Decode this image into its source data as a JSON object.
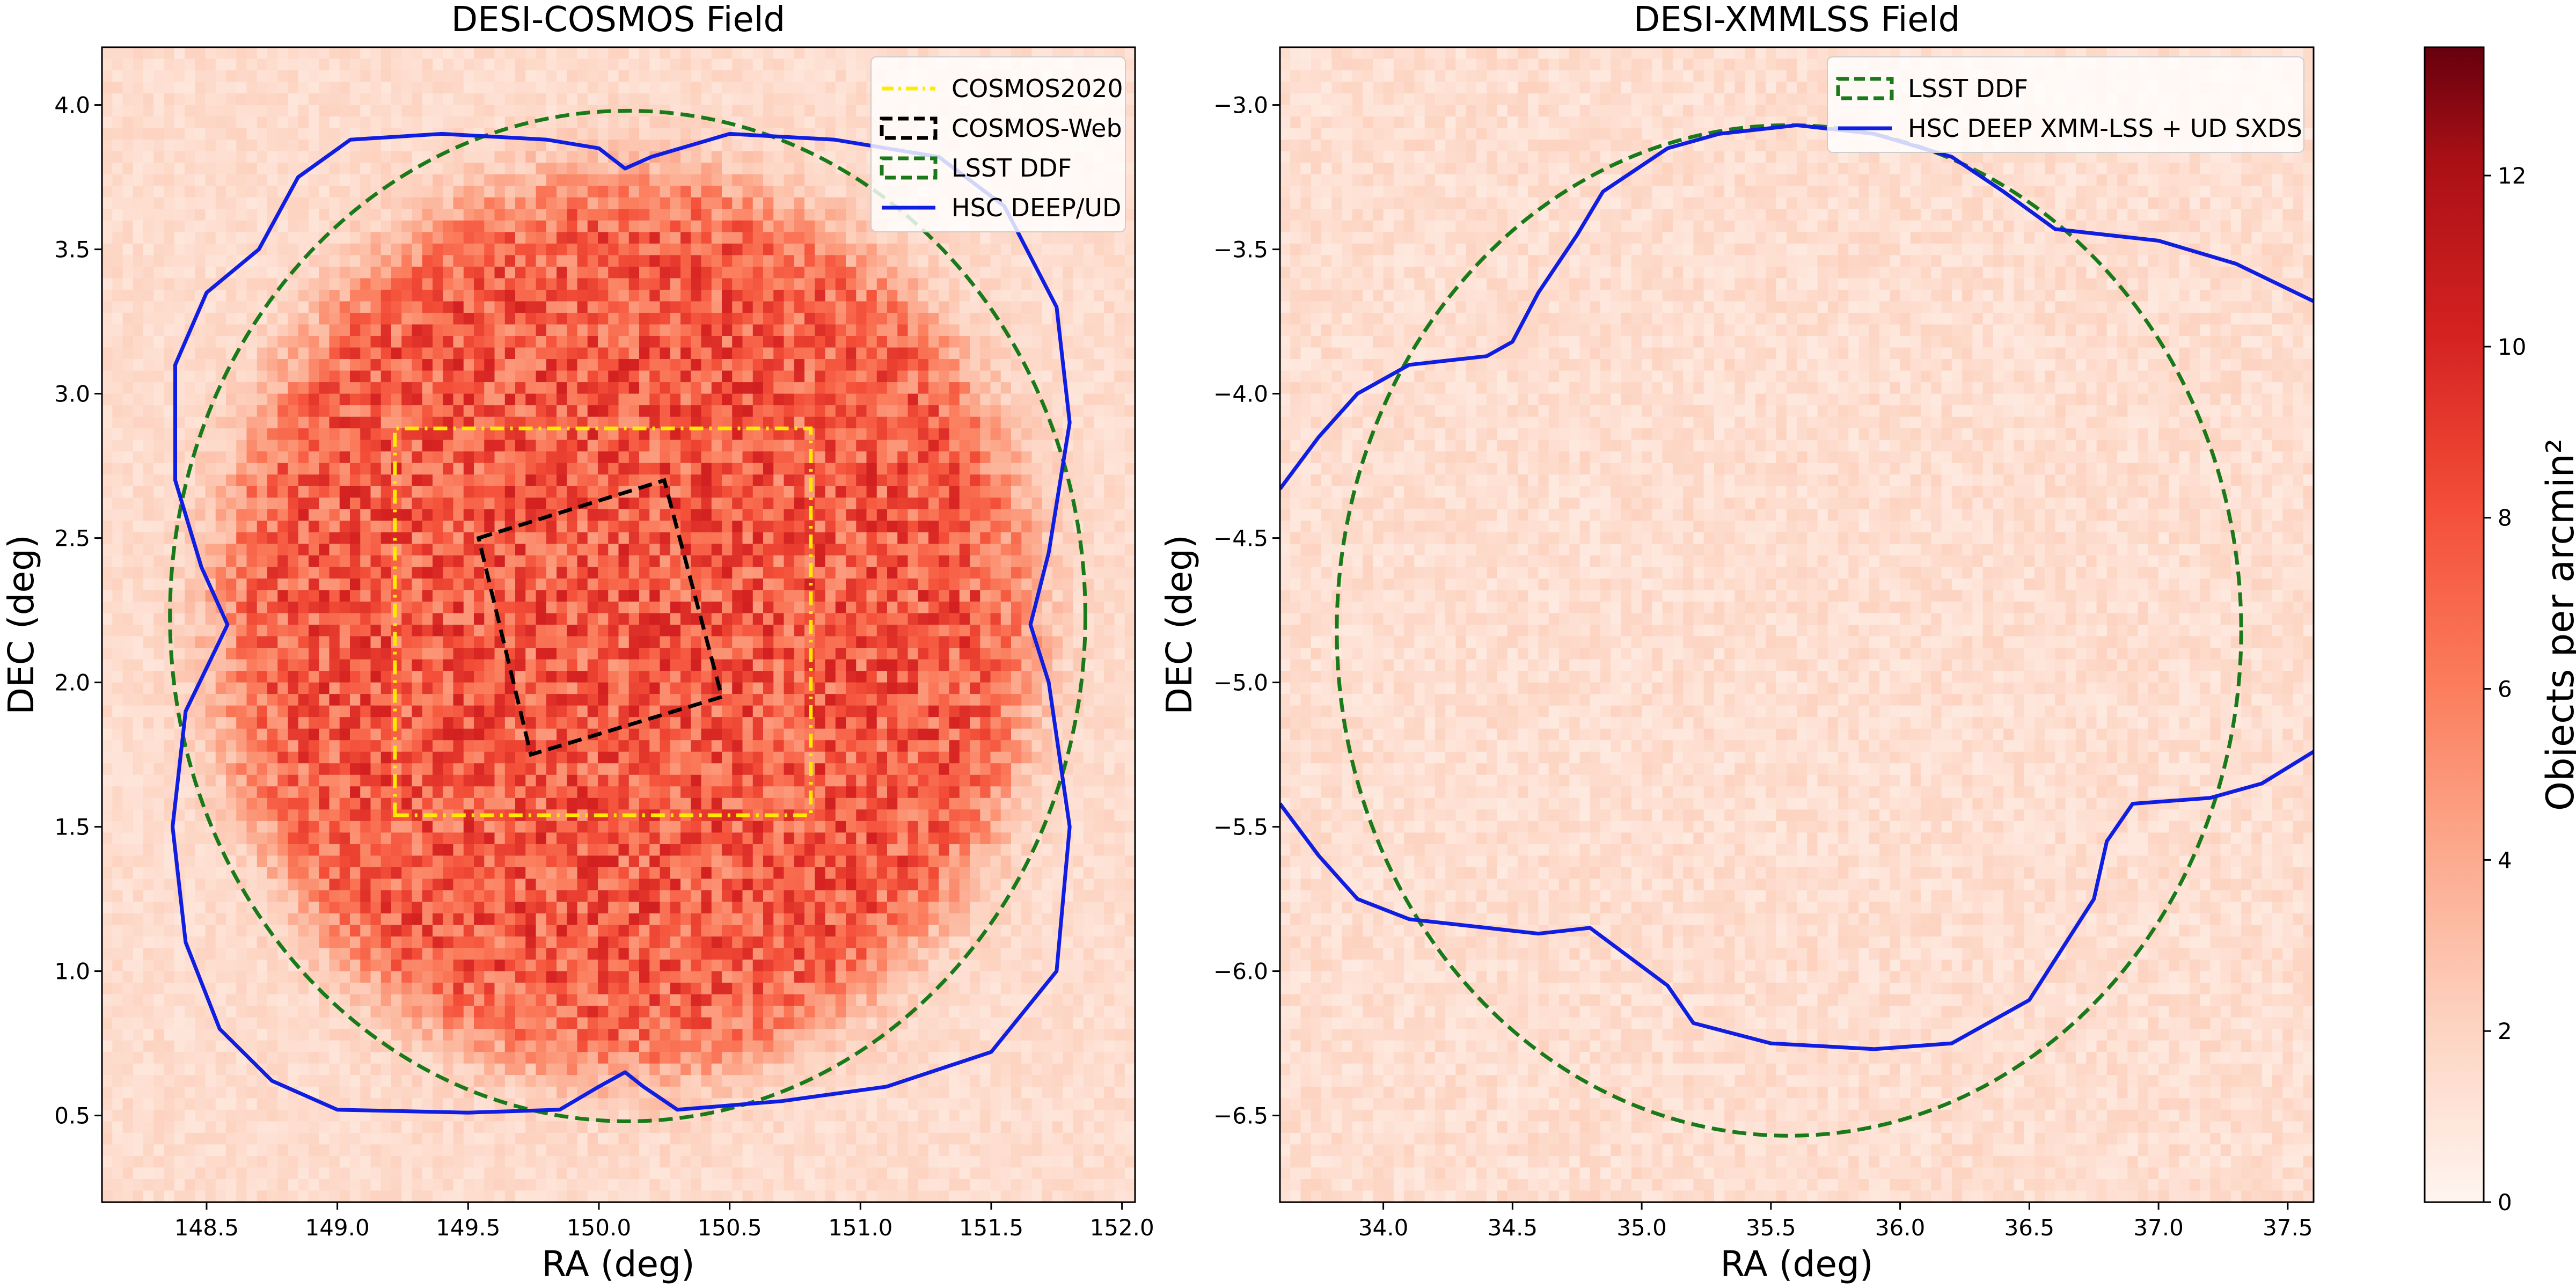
{
  "figure": {
    "colors": {
      "low": "#fff5f0",
      "high": "#67000d",
      "cosmos2020": "#ffea00",
      "cosmos_web": "#000000",
      "lsst_ddf": "#1a7a1a",
      "hsc": "#0f1ee0"
    }
  },
  "chart_data": [
    {
      "type": "heatmap",
      "title": "DESI-COSMOS Field",
      "xlabel": "RA (deg)",
      "ylabel": "DEC (deg)",
      "xlim": [
        148.1,
        152.05
      ],
      "ylim": [
        0.2,
        4.2
      ],
      "xticks": [
        148.5,
        149.0,
        149.5,
        150.0,
        150.5,
        151.0,
        151.5,
        152.0
      ],
      "xtick_labels": [
        "148.5",
        "149.0",
        "149.5",
        "150.0",
        "150.5",
        "151.0",
        "151.5",
        "152.0"
      ],
      "yticks": [
        0.5,
        1.0,
        1.5,
        2.0,
        2.5,
        3.0,
        3.5,
        4.0
      ],
      "ytick_labels": [
        "0.5",
        "1.0",
        "1.5",
        "2.0",
        "2.5",
        "3.0",
        "3.5",
        "4.0"
      ],
      "density": {
        "footprint_center": [
          150.1,
          2.2
        ],
        "footprint_radius_deg": 1.55,
        "inner_density": 7.5,
        "outer_density": 1.5
      },
      "legend": {
        "position": "top-right",
        "entries": [
          {
            "label": "COSMOS2020",
            "style": "dashdot",
            "color_key": "cosmos2020"
          },
          {
            "label": "COSMOS-Web",
            "style": "dashed",
            "color_key": "cosmos_web"
          },
          {
            "label": "LSST DDF",
            "style": "dashed",
            "color_key": "lsst_ddf"
          },
          {
            "label": "HSC DEEP/UD",
            "style": "solid",
            "color_key": "hsc"
          }
        ]
      },
      "overlays": {
        "cosmos2020": [
          [
            149.22,
            1.54
          ],
          [
            150.81,
            1.54
          ],
          [
            150.81,
            2.88
          ],
          [
            149.22,
            2.88
          ]
        ],
        "cosmos_web": [
          [
            149.54,
            2.5
          ],
          [
            150.25,
            2.7
          ],
          [
            150.47,
            1.95
          ],
          [
            149.74,
            1.75
          ]
        ],
        "lsst_ddf": {
          "center": [
            150.11,
            2.23
          ],
          "radius_ra": 1.75,
          "radius_dec": 1.75
        },
        "hsc": [
          [
            148.7,
            3.5
          ],
          [
            148.85,
            3.75
          ],
          [
            149.05,
            3.88
          ],
          [
            149.4,
            3.9
          ],
          [
            149.8,
            3.88
          ],
          [
            150.0,
            3.85
          ],
          [
            150.1,
            3.78
          ],
          [
            150.2,
            3.82
          ],
          [
            150.5,
            3.9
          ],
          [
            150.9,
            3.88
          ],
          [
            151.3,
            3.82
          ],
          [
            151.55,
            3.65
          ],
          [
            151.75,
            3.3
          ],
          [
            151.8,
            2.9
          ],
          [
            151.72,
            2.45
          ],
          [
            151.65,
            2.2
          ],
          [
            151.72,
            2.0
          ],
          [
            151.8,
            1.5
          ],
          [
            151.75,
            1.0
          ],
          [
            151.5,
            0.72
          ],
          [
            151.1,
            0.6
          ],
          [
            150.7,
            0.55
          ],
          [
            150.3,
            0.52
          ],
          [
            150.17,
            0.6
          ],
          [
            150.1,
            0.65
          ],
          [
            150.0,
            0.6
          ],
          [
            149.85,
            0.52
          ],
          [
            149.5,
            0.51
          ],
          [
            149.0,
            0.52
          ],
          [
            148.75,
            0.62
          ],
          [
            148.55,
            0.8
          ],
          [
            148.42,
            1.1
          ],
          [
            148.37,
            1.5
          ],
          [
            148.42,
            1.9
          ],
          [
            148.58,
            2.2
          ],
          [
            148.48,
            2.4
          ],
          [
            148.38,
            2.7
          ],
          [
            148.38,
            3.1
          ],
          [
            148.5,
            3.35
          ],
          [
            148.7,
            3.5
          ]
        ]
      }
    },
    {
      "type": "heatmap",
      "title": "DESI-XMMLSS Field",
      "xlabel": "RA (deg)",
      "ylabel": "DEC (deg)",
      "xlim": [
        33.6,
        37.6
      ],
      "ylim": [
        -6.8,
        -2.8
      ],
      "xticks": [
        34.0,
        34.5,
        35.0,
        35.5,
        36.0,
        36.5,
        37.0,
        37.5
      ],
      "xtick_labels": [
        "34.0",
        "34.5",
        "35.0",
        "35.5",
        "36.0",
        "36.5",
        "37.0",
        "37.5"
      ],
      "yticks": [
        -6.5,
        -6.0,
        -5.5,
        -5.0,
        -4.5,
        -4.0,
        -3.5,
        -3.0
      ],
      "ytick_labels": [
        "−6.5",
        "−6.0",
        "−5.5",
        "−5.0",
        "−4.5",
        "−4.0",
        "−3.5",
        "−3.0"
      ],
      "density": {
        "uniform_density": 1.4
      },
      "legend": {
        "position": "top-right",
        "entries": [
          {
            "label": "LSST DDF",
            "style": "dashed",
            "color_key": "lsst_ddf"
          },
          {
            "label": "HSC DEEP XMM-LSS + UD SXDS",
            "style": "solid",
            "color_key": "hsc"
          }
        ]
      },
      "overlays": {
        "lsst_ddf": {
          "center": [
            35.57,
            -4.82
          ],
          "radius_ra": 1.75,
          "radius_dec": 1.75
        },
        "hsc_upper": [
          [
            33.6,
            -4.33
          ],
          [
            33.75,
            -4.15
          ],
          [
            33.9,
            -4.0
          ],
          [
            34.1,
            -3.9
          ],
          [
            34.4,
            -3.87
          ],
          [
            34.5,
            -3.82
          ],
          [
            34.6,
            -3.65
          ],
          [
            34.75,
            -3.45
          ],
          [
            34.85,
            -3.3
          ],
          [
            35.1,
            -3.15
          ],
          [
            35.3,
            -3.1
          ],
          [
            35.6,
            -3.07
          ],
          [
            35.9,
            -3.1
          ],
          [
            36.2,
            -3.18
          ],
          [
            36.4,
            -3.3
          ],
          [
            36.6,
            -3.43
          ],
          [
            37.0,
            -3.47
          ],
          [
            37.3,
            -3.55
          ],
          [
            37.6,
            -3.68
          ]
        ],
        "hsc_lower": [
          [
            33.6,
            -5.42
          ],
          [
            33.75,
            -5.6
          ],
          [
            33.9,
            -5.75
          ],
          [
            34.1,
            -5.82
          ],
          [
            34.4,
            -5.85
          ],
          [
            34.6,
            -5.87
          ],
          [
            34.8,
            -5.85
          ],
          [
            34.95,
            -5.95
          ],
          [
            35.1,
            -6.05
          ],
          [
            35.2,
            -6.18
          ],
          [
            35.5,
            -6.25
          ],
          [
            35.9,
            -6.27
          ],
          [
            36.2,
            -6.25
          ],
          [
            36.5,
            -6.1
          ],
          [
            36.75,
            -5.75
          ],
          [
            36.8,
            -5.55
          ],
          [
            36.9,
            -5.42
          ],
          [
            37.2,
            -5.4
          ],
          [
            37.4,
            -5.35
          ],
          [
            37.6,
            -5.24
          ]
        ]
      }
    }
  ],
  "colorbar": {
    "label": "Objects per arcmin²",
    "vmin": 0,
    "vmax": 13.5,
    "ticks": [
      0,
      2,
      4,
      6,
      8,
      10,
      12
    ],
    "tick_labels": [
      "0",
      "2",
      "4",
      "6",
      "8",
      "10",
      "12"
    ]
  }
}
